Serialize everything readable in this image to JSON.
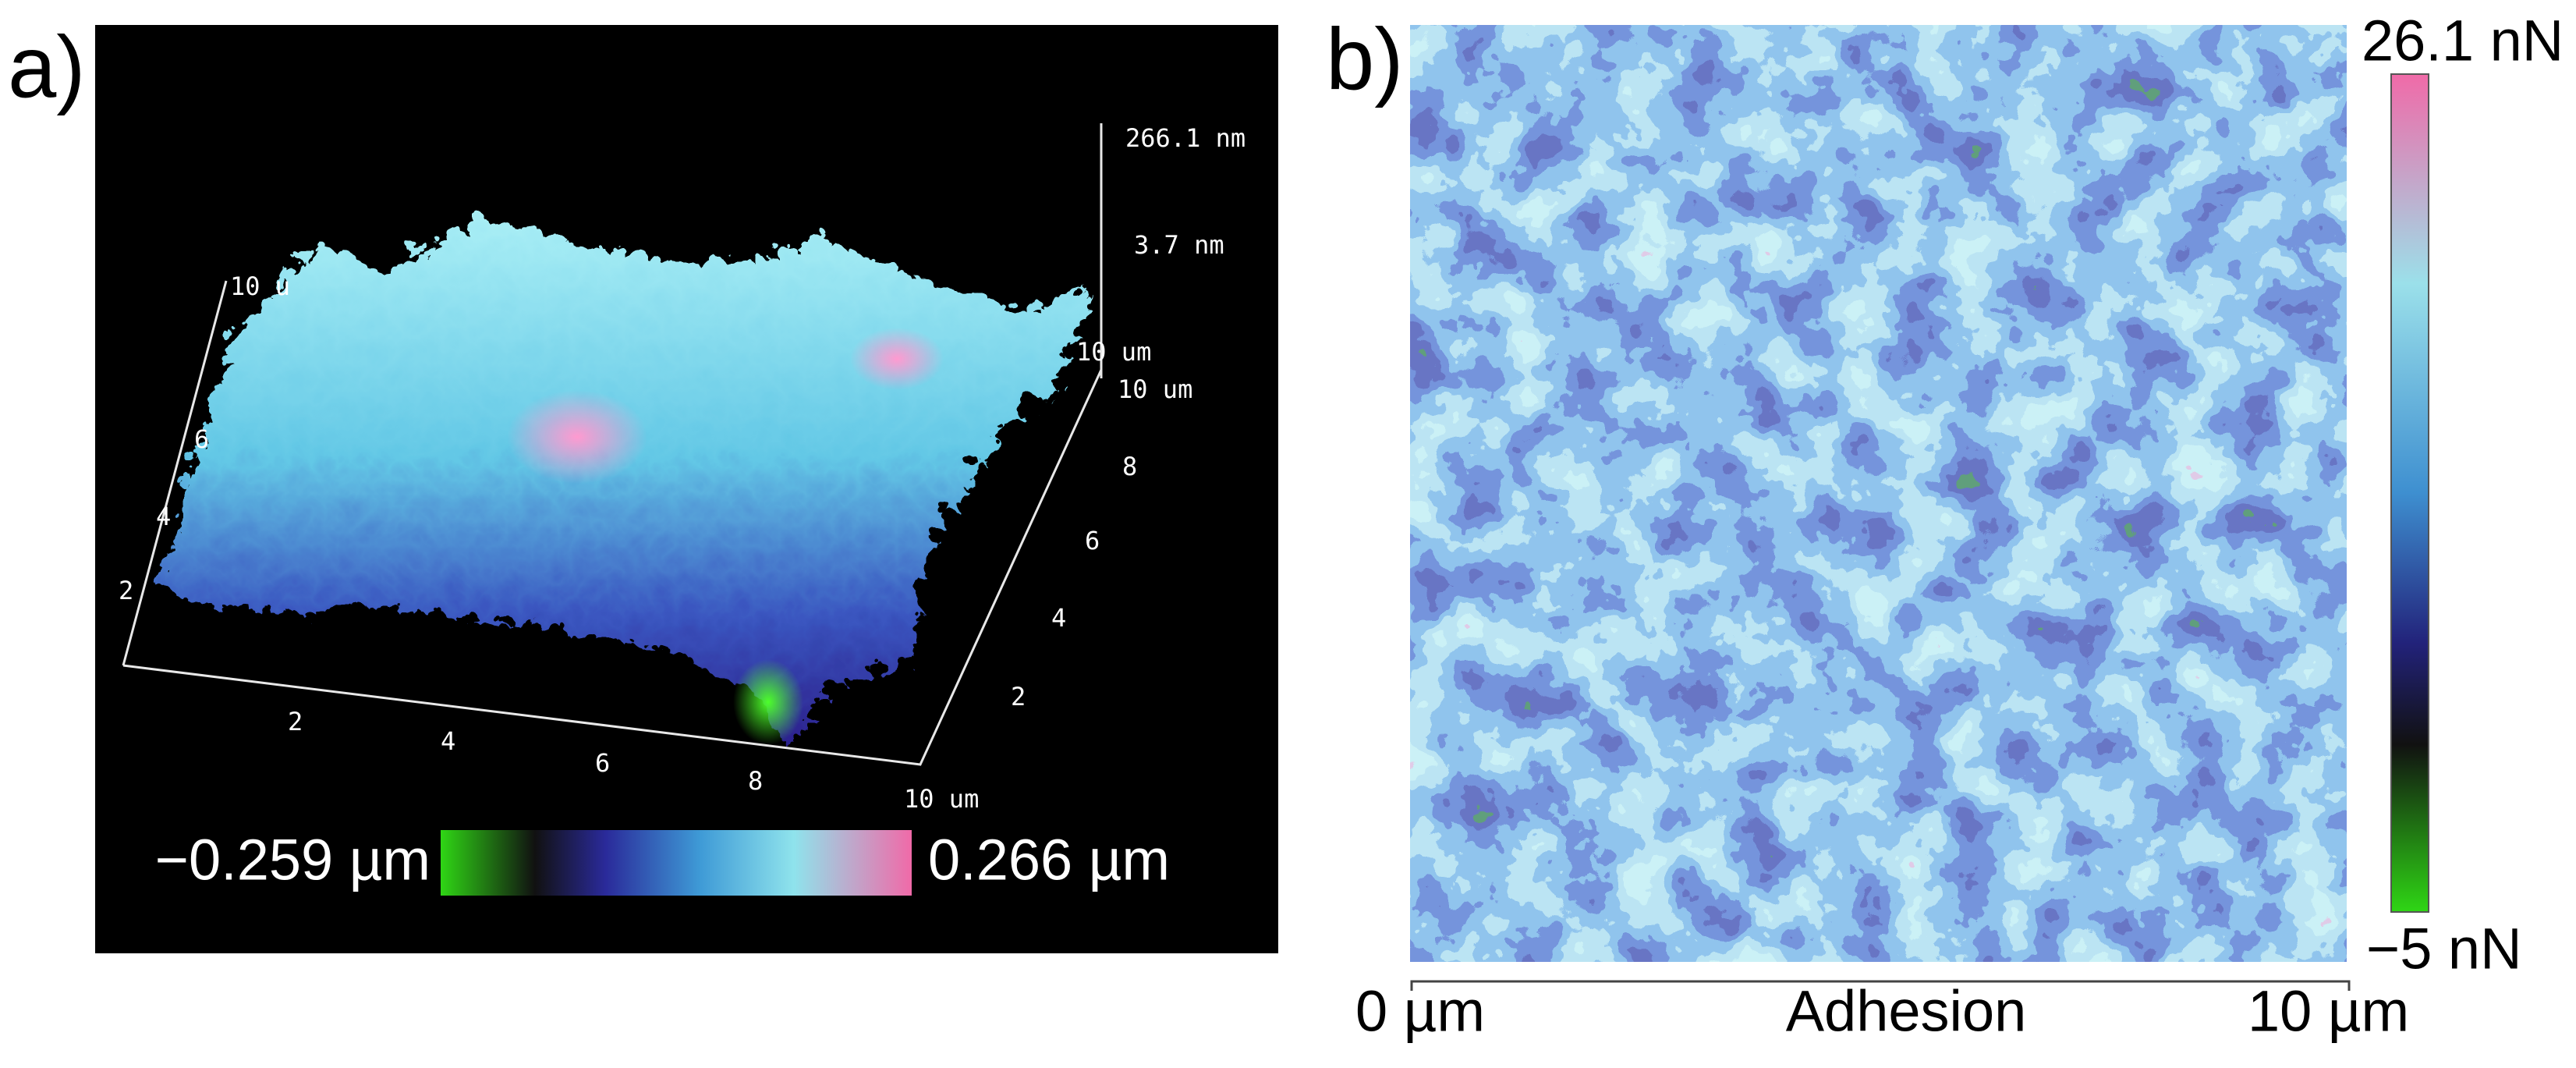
{
  "panel_a": {
    "label": "a)",
    "z_axis": [
      "266.1 nm",
      "3.7 nm",
      "10 um"
    ],
    "x_ticks": [
      "2",
      "4",
      "6",
      "8",
      "10 um"
    ],
    "y_ticks": [
      "2",
      "4",
      "6",
      "8",
      "10 um"
    ],
    "left_ticks": [
      "10 u",
      "6",
      "4",
      "2"
    ],
    "colorbar": {
      "min": "−0.259 µm",
      "max": "0.266 µm"
    }
  },
  "panel_b": {
    "label": "b)",
    "colorbar": {
      "max": "26.1 nN",
      "min": "−5 nN"
    },
    "axis": {
      "start": "0 µm",
      "title": "Adhesion",
      "end": "10 µm"
    }
  }
}
